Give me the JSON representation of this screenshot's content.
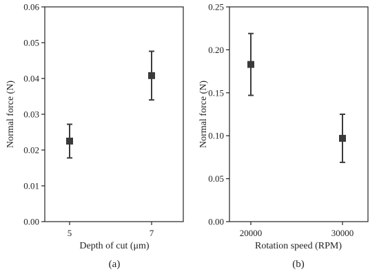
{
  "colors": {
    "marker": "#3a3a3a",
    "axis": "#222222"
  },
  "chart_data": [
    {
      "type": "scatter",
      "panel_label": "(a)",
      "xlabel": "Depth of cut (μm)",
      "ylabel": "Normal force (N)",
      "ylim": [
        0,
        0.06
      ],
      "y_ticks": [
        "0.00",
        "0.01",
        "0.02",
        "0.03",
        "0.04",
        "0.05",
        "0.06"
      ],
      "x_ticks": [
        "5",
        "7"
      ],
      "grid": false,
      "points": [
        {
          "x": 5,
          "y": 0.0225,
          "err_low": 0.0178,
          "err_high": 0.0272
        },
        {
          "x": 7,
          "y": 0.0408,
          "err_low": 0.034,
          "err_high": 0.0476
        }
      ]
    },
    {
      "type": "scatter",
      "panel_label": "(b)",
      "xlabel": "Rotation speed (RPM)",
      "ylabel": "Normal force (N)",
      "ylim": [
        0,
        0.25
      ],
      "y_ticks": [
        "0.00",
        "0.05",
        "0.10",
        "0.15",
        "0.20",
        "0.25"
      ],
      "x_ticks": [
        "20000",
        "30000"
      ],
      "grid": false,
      "points": [
        {
          "x": 20000,
          "y": 0.183,
          "err_low": 0.147,
          "err_high": 0.219
        },
        {
          "x": 30000,
          "y": 0.097,
          "err_low": 0.069,
          "err_high": 0.125
        }
      ]
    }
  ]
}
